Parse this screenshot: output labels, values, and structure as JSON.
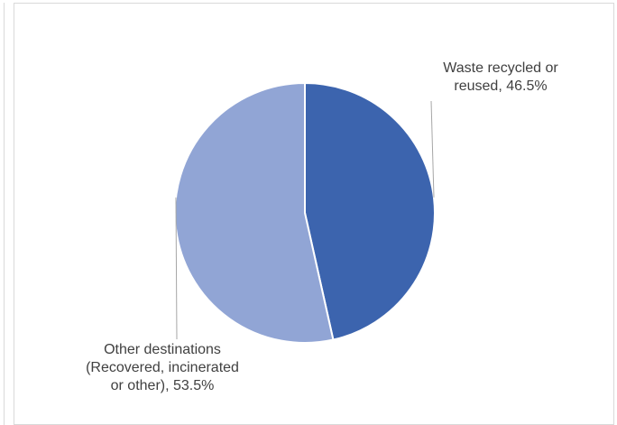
{
  "chart_data": {
    "type": "pie",
    "title": "",
    "slices": [
      {
        "label": "Waste recycled or reused",
        "value": 46.5,
        "label_text": "Waste recycled or reused, 46.5%",
        "color": "#3c64ae"
      },
      {
        "label": "Other destinations (Recovered, incinerated or other)",
        "value": 53.5,
        "label_text": "Other destinations (Recovered, incinerated or other), 53.5%",
        "color": "#91a5d5"
      }
    ],
    "legend": "none",
    "start_angle": "12 o'clock, clockwise"
  },
  "labels": {
    "slice_a_line1": "Waste recycled or",
    "slice_a_line2": "reused, 46.5%",
    "slice_b_line1": "Other destinations",
    "slice_b_line2": "(Recovered, incinerated",
    "slice_b_line3": "or other), 53.5%"
  }
}
